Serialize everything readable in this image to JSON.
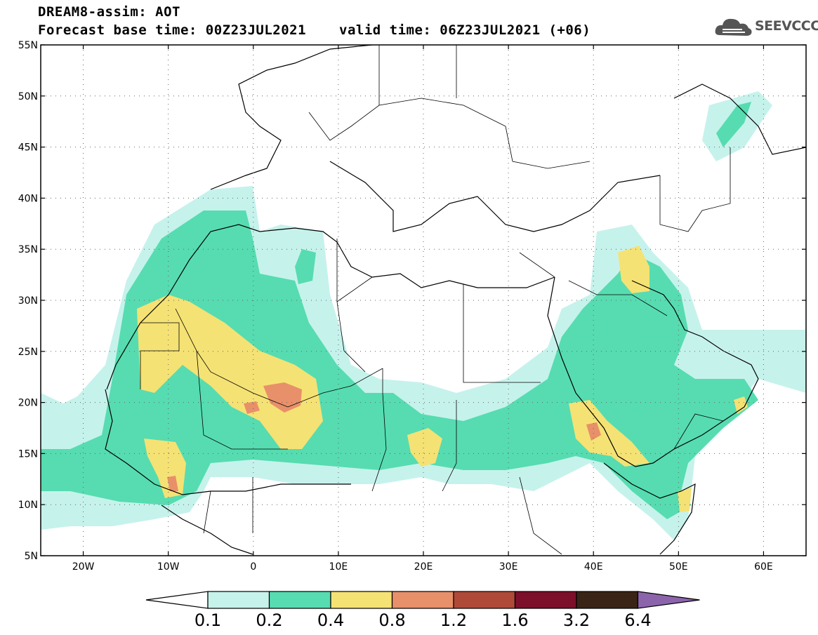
{
  "title": {
    "line1": "DREAM8-assim: AOT",
    "line2_base": "Forecast base time: 00Z23JUL2021",
    "line2_valid": "valid time: 06Z23JUL2021 (+06)"
  },
  "logo": {
    "text": "SEEVCCC",
    "icon": "cloud-icon"
  },
  "map": {
    "lat_labels": [
      "55N",
      "50N",
      "45N",
      "40N",
      "35N",
      "30N",
      "25N",
      "20N",
      "15N",
      "10N",
      "5N"
    ],
    "lon_labels": [
      "20W",
      "10W",
      "0",
      "10E",
      "20E",
      "30E",
      "40E",
      "50E",
      "60E"
    ],
    "lat_values": [
      55,
      50,
      45,
      40,
      35,
      30,
      25,
      20,
      15,
      10,
      5
    ],
    "lon_values": [
      -20,
      -10,
      0,
      10,
      20,
      30,
      40,
      50,
      60
    ],
    "extent": {
      "lon_min": -25,
      "lon_max": 65,
      "lat_min": 5,
      "lat_max": 55
    }
  },
  "colorbar": {
    "labels": [
      "0.1",
      "0.2",
      "0.4",
      "0.8",
      "1.2",
      "1.6",
      "3.2",
      "6.4"
    ],
    "colors": [
      "#c6f2ec",
      "#56dcb0",
      "#f5e274",
      "#e8906a",
      "#b04a38",
      "#7c0f2a",
      "#3a2416",
      "#8c64ac"
    ],
    "under_color": "#ffffff"
  },
  "colors": {
    "c1": "#c6f2ec",
    "c2": "#56dcb0",
    "c3": "#f5e274",
    "c4": "#e8906a"
  }
}
